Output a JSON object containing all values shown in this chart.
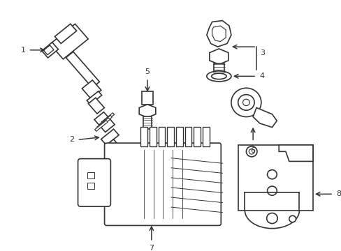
{
  "background_color": "#ffffff",
  "line_color": "#333333",
  "line_width": 1.2,
  "label_fontsize": 8
}
